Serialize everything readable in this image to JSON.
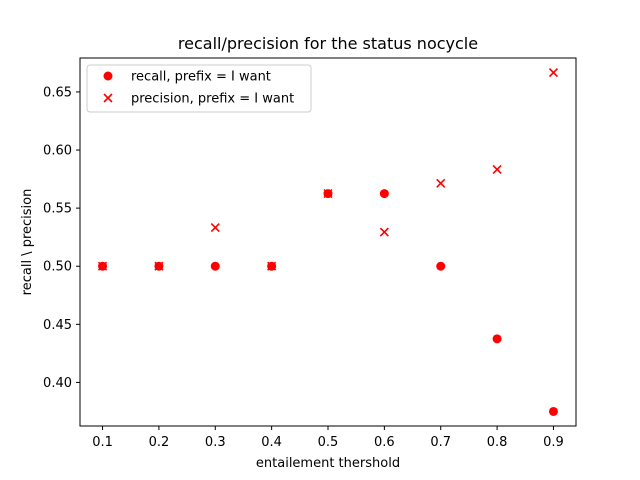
{
  "chart_data": {
    "type": "scatter",
    "title": "recall/precision for the status nocycle",
    "xlabel": "entailement thershold",
    "ylabel": "recall \\ precision",
    "xlim": [
      0.06,
      0.94
    ],
    "ylim": [
      0.3625,
      0.6792
    ],
    "xticks": [
      0.1,
      0.2,
      0.3,
      0.4,
      0.5,
      0.6,
      0.7,
      0.8,
      0.9
    ],
    "xtick_labels": [
      "0.1",
      "0.2",
      "0.3",
      "0.4",
      "0.5",
      "0.6",
      "0.7",
      "0.8",
      "0.9"
    ],
    "yticks": [
      0.4,
      0.45,
      0.5,
      0.55,
      0.6,
      0.65
    ],
    "ytick_labels": [
      "0.40",
      "0.45",
      "0.50",
      "0.55",
      "0.60",
      "0.65"
    ],
    "grid": false,
    "legend_position": "upper-left",
    "series": [
      {
        "name": "recall, prefix = I want",
        "marker": "circle",
        "color": "#ff0000",
        "x": [
          0.1,
          0.2,
          0.3,
          0.4,
          0.5,
          0.6,
          0.7,
          0.8,
          0.9
        ],
        "y": [
          0.5,
          0.5,
          0.5,
          0.5,
          0.5625,
          0.5625,
          0.5,
          0.4375,
          0.375
        ]
      },
      {
        "name": "precision, prefix = I want",
        "marker": "x",
        "color": "#ff0000",
        "x": [
          0.1,
          0.2,
          0.3,
          0.4,
          0.5,
          0.6,
          0.7,
          0.8,
          0.9
        ],
        "y": [
          0.5,
          0.5,
          0.5333,
          0.5,
          0.5625,
          0.5294,
          0.5714,
          0.5833,
          0.6667
        ]
      }
    ]
  }
}
